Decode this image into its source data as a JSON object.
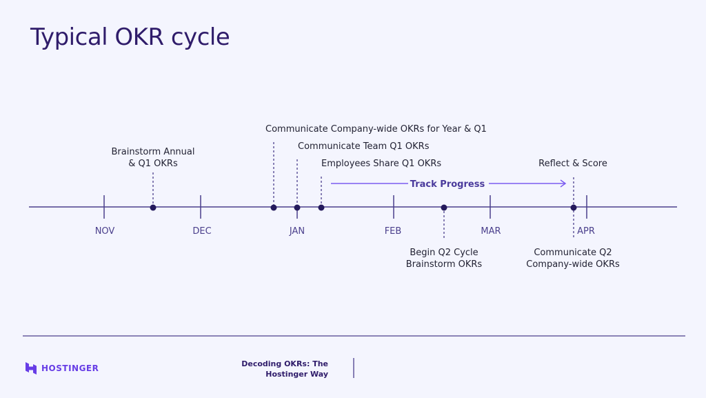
{
  "title": "Typical OKR cycle",
  "months": [
    "NOV",
    "DEC",
    "JAN",
    "FEB",
    "MAR",
    "APR"
  ],
  "events": {
    "brainstorm": [
      "Brainstorm Annual",
      "& Q1 OKRs"
    ],
    "company": "Communicate Company-wide OKRs for Year & Q1",
    "team": "Communicate Team Q1 OKRs",
    "employees": "Employees Share Q1 OKRs",
    "reflect": "Reflect & Score",
    "q2begin": [
      "Begin Q2 Cycle",
      "Brainstorm OKRs"
    ],
    "q2comm": [
      "Communicate Q2",
      "Company-wide OKRs"
    ]
  },
  "track_progress": "Track Progress",
  "footer": {
    "brand": "HOSTINGER",
    "deck_title": [
      "Decoding OKRs: The",
      "Hostinger Way"
    ]
  },
  "colors": {
    "title": "#2f1c6a",
    "line": "#4a3f8c",
    "accent": "#673de6",
    "background": "#f4f5fe"
  }
}
